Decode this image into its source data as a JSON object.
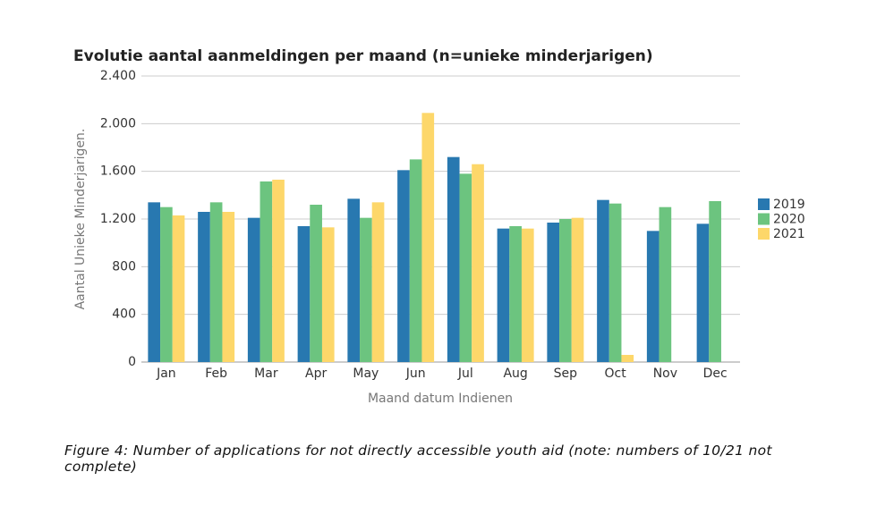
{
  "chart_data": {
    "type": "bar",
    "title": "Evolutie aantal aanmeldingen per maand (n=unieke minderjarigen)",
    "x_label": "Maand datum Indienen",
    "y_label": "Aantal Unieke Minderjarigen.",
    "categories": [
      "Jan",
      "Feb",
      "Mar",
      "Apr",
      "May",
      "Jun",
      "Jul",
      "Aug",
      "Sep",
      "Oct",
      "Nov",
      "Dec"
    ],
    "series": [
      {
        "name": "2019",
        "color": "#2878b0",
        "values": [
          1340,
          1260,
          1210,
          1140,
          1370,
          1610,
          1720,
          1120,
          1170,
          1360,
          1100,
          1160
        ]
      },
      {
        "name": "2020",
        "color": "#6cc47f",
        "values": [
          1300,
          1340,
          1515,
          1320,
          1210,
          1700,
          1580,
          1140,
          1200,
          1330,
          1300,
          1350
        ]
      },
      {
        "name": "2021",
        "color": "#fdd76a",
        "values": [
          1230,
          1260,
          1530,
          1130,
          1340,
          2090,
          1660,
          1120,
          1210,
          60,
          null,
          null
        ]
      }
    ],
    "ylim": [
      0,
      2400
    ],
    "yticks": [
      0,
      400,
      800,
      {
        "value": 1200,
        "label": "1.200"
      },
      {
        "value": 1600,
        "label": "1.600"
      },
      {
        "value": 2000,
        "label": "2.000"
      },
      {
        "value": 2400,
        "label": "2.400"
      }
    ],
    "grid": true,
    "legend_position": "right"
  },
  "caption": "Figure 4: Number of applications for not directly accessible youth aid (note: numbers of 10/21 not complete)"
}
